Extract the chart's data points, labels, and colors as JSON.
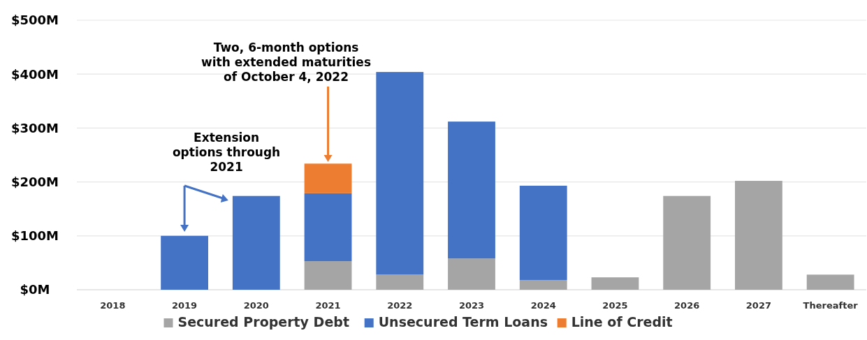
{
  "chart_data": {
    "type": "bar",
    "stacked": true,
    "categories": [
      "2018",
      "2019",
      "2020",
      "2021",
      "2022",
      "2023",
      "2024",
      "2025",
      "2026",
      "2027",
      "Thereafter"
    ],
    "series": [
      {
        "name": "Secured Property Debt",
        "color": "#a5a5a5",
        "values": [
          null,
          null,
          null,
          53,
          28,
          58,
          18,
          23,
          174,
          202,
          28
        ]
      },
      {
        "name": "Unsecured Term Loans",
        "color": "#4472c4",
        "values": [
          null,
          100,
          174,
          126,
          376,
          254,
          175,
          null,
          null,
          null,
          null
        ]
      },
      {
        "name": "Line of Credit",
        "color": "#ed7d31",
        "values": [
          null,
          null,
          null,
          55,
          null,
          null,
          null,
          null,
          null,
          null,
          null
        ]
      }
    ],
    "ylim": [
      0,
      500
    ],
    "yticks": [
      {
        "value": 0,
        "label": "$0M"
      },
      {
        "value": 100,
        "label": "$100M"
      },
      {
        "value": 200,
        "label": "$200M"
      },
      {
        "value": 300,
        "label": "$300M"
      },
      {
        "value": 400,
        "label": "$400M"
      },
      {
        "value": 500,
        "label": "$500M"
      }
    ],
    "grid": "y",
    "legend": "bottom",
    "annotations": [
      "Extension options through 2021",
      "Two, 6-month options with extended maturities of October 4, 2022"
    ]
  }
}
